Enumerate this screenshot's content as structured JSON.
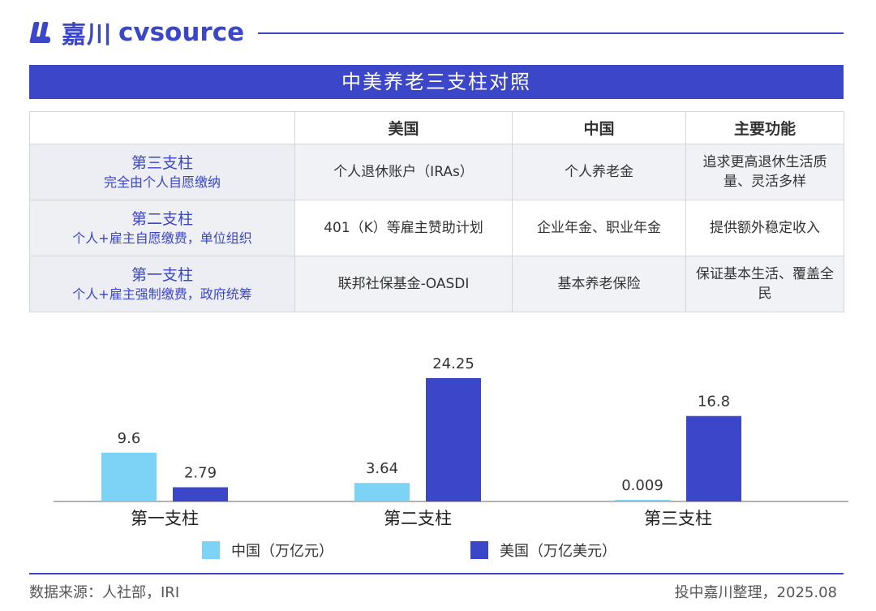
{
  "brand": {
    "name_cn": "嘉川",
    "name_en": "cvsource",
    "accent_color": "#3b46c9",
    "logo_icon": "jiachuan-logo-icon"
  },
  "title": "中美养老三支柱对照",
  "table": {
    "headers": [
      "",
      "美国",
      "中国",
      "主要功能"
    ],
    "rows": [
      {
        "pillar": "第三支柱",
        "desc": "完全由个人自愿缴纳",
        "us": "个人退休账户（IRAs）",
        "cn": "个人养老金",
        "func": "追求更高退休生活质量、灵活多样"
      },
      {
        "pillar": "第二支柱",
        "desc": "个人+雇主自愿缴费，单位组织",
        "us": "401（K）等雇主赞助计划",
        "cn": "企业年金、职业年金",
        "func": "提供额外稳定收入"
      },
      {
        "pillar": "第一支柱",
        "desc": "个人+雇主强制缴费，政府统筹",
        "us": "联邦社保基金-OASDI",
        "cn": "基本养老保险",
        "func": "保证基本生活、覆盖全民"
      }
    ]
  },
  "chart_data": {
    "type": "bar",
    "categories": [
      "第一支柱",
      "第二支柱",
      "第三支柱"
    ],
    "series": [
      {
        "name": "中国（万亿元）",
        "values": [
          9.6,
          3.64,
          0.009
        ],
        "color": "#7dd3f5"
      },
      {
        "name": "美国（万亿美元）",
        "values": [
          2.79,
          24.25,
          16.8
        ],
        "color": "#3b46c9"
      }
    ],
    "ylim": [
      0,
      25
    ],
    "grid": false,
    "legend": "bottom"
  },
  "footer": {
    "source": "数据来源：人社部，IRI",
    "credit": "投中嘉川整理，2025.08"
  }
}
